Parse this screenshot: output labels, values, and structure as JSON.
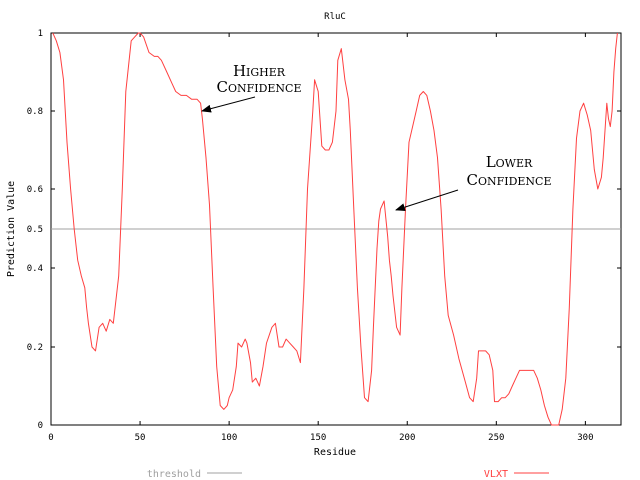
{
  "chart_data": {
    "type": "line",
    "title": "RluC",
    "xlabel": "Residue",
    "ylabel": "Prediction Value",
    "xlim": [
      0,
      320
    ],
    "ylim": [
      0,
      1
    ],
    "x_ticks": [
      0,
      50,
      100,
      150,
      200,
      250,
      300
    ],
    "x_tick_labels": [
      "0",
      "50",
      "100",
      "150",
      "200",
      "250",
      "300"
    ],
    "y_ticks": [
      0,
      0.2,
      0.4,
      0.5,
      0.6,
      0.8,
      1
    ],
    "y_tick_labels": [
      "0",
      "0.2",
      "0.4",
      "0.5",
      "0.6",
      "0.8",
      "1"
    ],
    "grid": false,
    "legend_position": "bottom",
    "series": [
      {
        "name": "threshold",
        "color": "#a0a0a0",
        "x": [
          0,
          320
        ],
        "y": [
          0.5,
          0.5
        ]
      },
      {
        "name": "VLXT",
        "color": "#ff4040",
        "x": [
          1,
          3,
          5,
          7,
          9,
          11,
          13,
          15,
          17,
          19,
          20,
          21,
          23,
          25,
          27,
          29,
          31,
          33,
          35,
          38,
          40,
          42,
          45,
          47,
          49,
          50,
          52,
          55,
          58,
          60,
          62,
          65,
          68,
          70,
          73,
          76,
          79,
          82,
          84,
          85,
          87,
          89,
          91,
          93,
          95,
          97,
          99,
          100,
          102,
          104,
          105,
          107,
          109,
          110,
          112,
          113,
          115,
          117,
          119,
          121,
          124,
          126,
          128,
          130,
          132,
          134,
          136,
          138,
          140,
          142,
          144,
          147,
          148,
          150,
          151,
          152,
          154,
          156,
          158,
          160,
          161,
          163,
          165,
          167,
          168,
          170,
          172,
          174,
          176,
          178,
          180,
          181,
          183,
          184,
          185,
          187,
          189,
          190,
          191,
          192,
          194,
          196,
          197,
          199,
          201,
          203,
          205,
          207,
          209,
          211,
          213,
          215,
          217,
          219,
          221,
          223,
          226,
          229,
          232,
          235,
          237,
          239,
          240,
          242,
          244,
          246,
          248,
          249,
          251,
          253,
          255,
          257,
          259,
          261,
          263,
          266,
          269,
          271,
          273,
          275,
          277,
          279,
          281,
          283,
          285,
          287,
          289,
          291,
          293,
          295,
          297,
          299,
          301,
          303,
          305,
          307,
          309,
          310,
          311,
          312,
          313,
          314,
          315,
          316,
          317,
          318
        ],
        "y": [
          1.0,
          0.98,
          0.95,
          0.88,
          0.72,
          0.6,
          0.5,
          0.42,
          0.38,
          0.35,
          0.3,
          0.26,
          0.2,
          0.19,
          0.25,
          0.26,
          0.24,
          0.27,
          0.26,
          0.38,
          0.6,
          0.85,
          0.98,
          0.99,
          1.0,
          1.0,
          0.99,
          0.95,
          0.94,
          0.94,
          0.93,
          0.9,
          0.87,
          0.85,
          0.84,
          0.84,
          0.83,
          0.83,
          0.82,
          0.78,
          0.68,
          0.56,
          0.35,
          0.15,
          0.05,
          0.04,
          0.05,
          0.07,
          0.09,
          0.15,
          0.21,
          0.2,
          0.22,
          0.21,
          0.16,
          0.11,
          0.12,
          0.1,
          0.15,
          0.21,
          0.25,
          0.26,
          0.2,
          0.2,
          0.22,
          0.21,
          0.2,
          0.19,
          0.16,
          0.35,
          0.6,
          0.8,
          0.88,
          0.85,
          0.78,
          0.71,
          0.7,
          0.7,
          0.72,
          0.8,
          0.93,
          0.96,
          0.88,
          0.83,
          0.75,
          0.55,
          0.35,
          0.2,
          0.07,
          0.06,
          0.14,
          0.25,
          0.45,
          0.52,
          0.55,
          0.57,
          0.48,
          0.42,
          0.38,
          0.33,
          0.25,
          0.23,
          0.35,
          0.55,
          0.72,
          0.76,
          0.8,
          0.84,
          0.85,
          0.84,
          0.8,
          0.75,
          0.68,
          0.55,
          0.38,
          0.28,
          0.23,
          0.17,
          0.12,
          0.07,
          0.06,
          0.12,
          0.19,
          0.19,
          0.19,
          0.18,
          0.14,
          0.06,
          0.06,
          0.07,
          0.07,
          0.08,
          0.1,
          0.12,
          0.14,
          0.14,
          0.14,
          0.14,
          0.12,
          0.09,
          0.05,
          0.02,
          0.0,
          0.0,
          0.0,
          0.04,
          0.12,
          0.3,
          0.55,
          0.73,
          0.8,
          0.82,
          0.79,
          0.75,
          0.65,
          0.6,
          0.63,
          0.68,
          0.75,
          0.82,
          0.78,
          0.76,
          0.8,
          0.9,
          0.96,
          1.0
        ]
      }
    ],
    "annotations": [
      {
        "text": [
          "Higher",
          "Confidence"
        ],
        "points_to": [
          84,
          0.8
        ]
      },
      {
        "text": [
          "Lower",
          "Confidence"
        ],
        "points_to": [
          193,
          0.55
        ]
      }
    ]
  }
}
